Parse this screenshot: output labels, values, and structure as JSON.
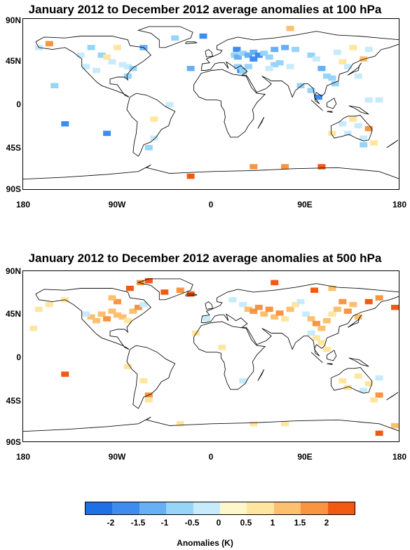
{
  "charts": [
    {
      "title": "January 2012 to December 2012 average anomalies at 100 hPa",
      "y_ticks": [
        "90N",
        "45N",
        "0",
        "45S",
        "90S"
      ],
      "x_ticks": [
        "180",
        "90W",
        "0",
        "90E",
        "180"
      ],
      "chart_data": {
        "type": "heatmap",
        "units": "K",
        "cells": [
          [
            -2.0,
            28,
            36
          ],
          [
            -2.0,
            -8,
            72
          ],
          [
            -2.0,
            24,
            58
          ],
          [
            -1.0,
            22,
            52
          ],
          [
            -1.5,
            25,
            50
          ],
          [
            -1.0,
            30,
            54
          ],
          [
            -1.5,
            35,
            52
          ],
          [
            -1.5,
            40,
            55
          ],
          [
            -2.0,
            45,
            52
          ],
          [
            -2.0,
            40,
            48
          ],
          [
            -1.0,
            50,
            54
          ],
          [
            -1.0,
            55,
            50
          ],
          [
            -1.5,
            60,
            58
          ],
          [
            -1.5,
            70,
            60
          ],
          [
            -1.0,
            80,
            58
          ],
          [
            -1.0,
            95,
            52
          ],
          [
            -0.5,
            100,
            48
          ],
          [
            -1.5,
            105,
            38
          ],
          [
            -1.0,
            110,
            30
          ],
          [
            -1.0,
            115,
            28
          ],
          [
            -1.0,
            118,
            22
          ],
          [
            -2.0,
            102,
            8
          ],
          [
            -1.0,
            95,
            15
          ],
          [
            -1.0,
            85,
            20
          ],
          [
            -0.5,
            75,
            40
          ],
          [
            -1.0,
            65,
            44
          ],
          [
            -1.0,
            60,
            42
          ],
          [
            -0.5,
            55,
            38
          ],
          [
            -1.0,
            35,
            40
          ],
          [
            -1.0,
            30,
            35
          ],
          [
            -1.0,
            25,
            40
          ],
          [
            -2.0,
            -140,
            -20
          ],
          [
            -2.0,
            -100,
            -30
          ],
          [
            -1.0,
            -115,
            60
          ],
          [
            -1.0,
            -105,
            52
          ],
          [
            -0.5,
            -95,
            45
          ],
          [
            -0.5,
            -85,
            42
          ],
          [
            -0.5,
            -80,
            40
          ],
          [
            -1.0,
            -75,
            38
          ],
          [
            -1.0,
            -80,
            30
          ],
          [
            -0.5,
            -120,
            40
          ],
          [
            -0.5,
            -110,
            36
          ],
          [
            -1.0,
            -150,
            20
          ],
          [
            -0.5,
            -165,
            60
          ],
          [
            1.5,
            -155,
            64
          ],
          [
            -1.5,
            -65,
            60
          ],
          [
            -1.5,
            -20,
            38
          ],
          [
            -1.0,
            -35,
            70
          ],
          [
            -0.5,
            120,
            55
          ],
          [
            0.5,
            125,
            45
          ],
          [
            -0.5,
            130,
            40
          ],
          [
            0.5,
            135,
            60
          ],
          [
            1.0,
            145,
            48
          ],
          [
            -0.5,
            140,
            30
          ],
          [
            -0.5,
            150,
            58
          ],
          [
            -0.5,
            150,
            5
          ],
          [
            -0.5,
            160,
            5
          ],
          [
            -0.5,
            125,
            -20
          ],
          [
            -0.5,
            140,
            -22
          ],
          [
            1.5,
            150,
            -25
          ],
          [
            -0.5,
            145,
            -35
          ],
          [
            0.5,
            155,
            -40
          ],
          [
            -0.5,
            130,
            -30
          ],
          [
            0.5,
            135,
            -15
          ],
          [
            0.5,
            115,
            -30
          ],
          [
            -1.0,
            145,
            -42
          ],
          [
            1.5,
            40,
            -65
          ],
          [
            1.5,
            70,
            -65
          ],
          [
            2.0,
            105,
            -65
          ],
          [
            2.0,
            -20,
            -75
          ],
          [
            -1.0,
            -60,
            -45
          ],
          [
            -0.5,
            -55,
            -35
          ],
          [
            0.5,
            -55,
            -15
          ],
          [
            -0.5,
            -40,
            0
          ],
          [
            1.0,
            75,
            80
          ],
          [
            -0.5,
            -125,
            52
          ],
          [
            0.5,
            -90,
            60
          ],
          [
            0.5,
            -100,
            50
          ]
        ]
      }
    },
    {
      "title": "January 2012 to December 2012 average anomalies at 500 hPa",
      "y_ticks": [
        "90N",
        "45N",
        "0",
        "45S",
        "90S"
      ],
      "x_ticks": [
        "180",
        "90W",
        "0",
        "90E",
        "180"
      ],
      "chart_data": {
        "type": "heatmap",
        "units": "K",
        "cells": [
          [
            1.0,
            -115,
            42
          ],
          [
            1.0,
            -110,
            38
          ],
          [
            1.0,
            -105,
            45
          ],
          [
            1.5,
            -100,
            40
          ],
          [
            1.0,
            -95,
            48
          ],
          [
            1.0,
            -90,
            44
          ],
          [
            1.0,
            -85,
            42
          ],
          [
            0.5,
            -80,
            38
          ],
          [
            1.0,
            -75,
            48
          ],
          [
            1.5,
            -70,
            52
          ],
          [
            2.0,
            -78,
            72
          ],
          [
            1.5,
            -68,
            78
          ],
          [
            2.0,
            -60,
            80
          ],
          [
            2.0,
            -45,
            68
          ],
          [
            1.5,
            -30,
            70
          ],
          [
            2.0,
            -20,
            66
          ],
          [
            1.5,
            -90,
            58
          ],
          [
            1.0,
            -95,
            62
          ],
          [
            0.5,
            -140,
            60
          ],
          [
            0.5,
            -155,
            55
          ],
          [
            0.5,
            -165,
            50
          ],
          [
            -0.5,
            -65,
            55
          ],
          [
            -0.5,
            20,
            60
          ],
          [
            -0.5,
            30,
            55
          ],
          [
            1.0,
            35,
            50
          ],
          [
            1.5,
            40,
            48
          ],
          [
            1.5,
            45,
            52
          ],
          [
            1.0,
            50,
            45
          ],
          [
            1.5,
            55,
            50
          ],
          [
            1.0,
            60,
            42
          ],
          [
            1.5,
            65,
            46
          ],
          [
            0.5,
            70,
            40
          ],
          [
            1.0,
            75,
            50
          ],
          [
            0.5,
            80,
            55
          ],
          [
            -0.5,
            85,
            58
          ],
          [
            -0.5,
            90,
            45
          ],
          [
            1.0,
            95,
            40
          ],
          [
            1.5,
            100,
            35
          ],
          [
            1.0,
            105,
            30
          ],
          [
            1.0,
            110,
            38
          ],
          [
            0.5,
            115,
            45
          ],
          [
            1.0,
            120,
            50
          ],
          [
            1.5,
            125,
            58
          ],
          [
            1.5,
            130,
            48
          ],
          [
            1.0,
            135,
            55
          ],
          [
            1.0,
            140,
            42
          ],
          [
            2.0,
            150,
            58
          ],
          [
            2.0,
            175,
            52
          ],
          [
            1.5,
            160,
            62
          ],
          [
            1.0,
            115,
            72
          ],
          [
            2.0,
            98,
            70
          ],
          [
            2.0,
            60,
            78
          ],
          [
            0.5,
            100,
            20
          ],
          [
            0.5,
            105,
            15
          ],
          [
            -0.5,
            95,
            25
          ],
          [
            0.5,
            110,
            8
          ],
          [
            0.5,
            150,
            -28
          ],
          [
            0.5,
            140,
            -20
          ],
          [
            0.5,
            125,
            -25
          ],
          [
            0.5,
            130,
            -32
          ],
          [
            -0.5,
            145,
            -35
          ],
          [
            1.5,
            160,
            -40
          ],
          [
            0.5,
            155,
            -45
          ],
          [
            -0.5,
            160,
            -22
          ],
          [
            2.0,
            -140,
            -18
          ],
          [
            1.5,
            -60,
            -40
          ],
          [
            0.5,
            -60,
            -45
          ],
          [
            0.5,
            -65,
            -25
          ],
          [
            0.5,
            -80,
            -10
          ],
          [
            -0.5,
            30,
            -25
          ],
          [
            0.5,
            40,
            -70
          ],
          [
            0.5,
            70,
            -70
          ],
          [
            2.0,
            160,
            -80
          ],
          [
            1.0,
            175,
            -72
          ],
          [
            0.5,
            -30,
            -70
          ],
          [
            -0.5,
            -5,
            40
          ],
          [
            0.5,
            10,
            10
          ],
          [
            0.5,
            -15,
            25
          ],
          [
            -0.5,
            -120,
            45
          ],
          [
            0.5,
            -170,
            30
          ]
        ]
      }
    }
  ],
  "colorbar": {
    "colors": [
      "#1f6fe6",
      "#3d8df0",
      "#67b0f5",
      "#96d4f8",
      "#c8ebfb",
      "#fff7cc",
      "#ffe6a0",
      "#fdc06f",
      "#f99441",
      "#f25a12"
    ],
    "ticks": [
      "-2",
      "-1.5",
      "-1",
      "-0.5",
      "0",
      "0.5",
      "1",
      "1.5",
      "2"
    ],
    "label": "Anomalies (K)"
  }
}
